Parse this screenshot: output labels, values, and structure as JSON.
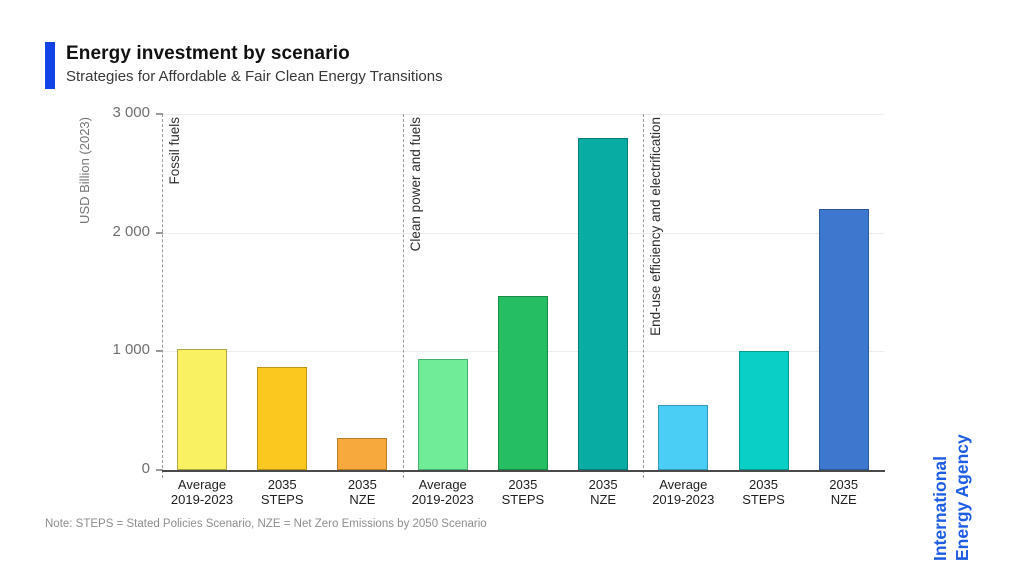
{
  "header": {
    "title": "Energy investment by scenario",
    "subtitle": "Strategies for Affordable & Fair Clean Energy Transitions",
    "accent_color": "#1243E6"
  },
  "chart_data": {
    "type": "bar",
    "title": "Energy investment by scenario",
    "subtitle": "Strategies for Affordable & Fair Clean Energy Transitions",
    "ylabel": "USD Billion (2023)",
    "ylim": [
      0,
      3000
    ],
    "grid": "horizontal",
    "legend_position": "none",
    "yticks": [
      {
        "value": 0,
        "label": "0"
      },
      {
        "value": 1000,
        "label": "1 000"
      },
      {
        "value": 2000,
        "label": "2 000"
      },
      {
        "value": 3000,
        "label": "3 000"
      }
    ],
    "categories": [
      "Average\n2019-2023",
      "2035\nSTEPS",
      "2035\nNZE"
    ],
    "groups": [
      {
        "label": "Fossil fuels",
        "bars": [
          {
            "category": "Average\n2019-2023",
            "value": 1020,
            "color": "#FAF162",
            "border": "#b1a542"
          },
          {
            "category": "2035\nSTEPS",
            "value": 870,
            "color": "#FAC81F",
            "border": "#bd9516"
          },
          {
            "category": "2035\nNZE",
            "value": 270,
            "color": "#F7A93E",
            "border": "#ba7e26"
          }
        ]
      },
      {
        "label": "Clean power and fuels",
        "bars": [
          {
            "category": "Average\n2019-2023",
            "value": 940,
            "color": "#70EC99",
            "border": "#47b06e"
          },
          {
            "category": "2035\nSTEPS",
            "value": 1470,
            "color": "#25BE63",
            "border": "#178a45"
          },
          {
            "category": "2035\nNZE",
            "value": 2800,
            "color": "#09ACA2",
            "border": "#067d76"
          }
        ]
      },
      {
        "label": "End-use efficiency and electrification",
        "bars": [
          {
            "category": "Average\n2019-2023",
            "value": 550,
            "color": "#4BCEF6",
            "border": "#3398b8"
          },
          {
            "category": "2035\nSTEPS",
            "value": 1000,
            "color": "#09CFC7",
            "border": "#069a93"
          },
          {
            "category": "2035\nNZE",
            "value": 2200,
            "color": "#3E78CE",
            "border": "#2c589a"
          }
        ]
      }
    ]
  },
  "note": "Note: STEPS = Stated Policies Scenario, NZE = Net Zero Emissions by 2050 Scenario",
  "logo": {
    "line1": "International",
    "line2": "Energy Agency",
    "color": "#1D5CE4"
  }
}
